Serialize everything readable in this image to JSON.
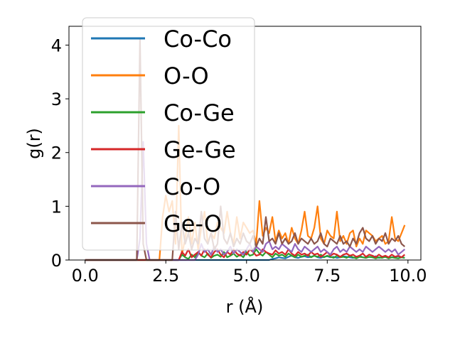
{
  "chart_data": {
    "type": "line",
    "xlabel": "r (Å)",
    "ylabel": "g(r)",
    "xlim": [
      -0.5,
      10.4
    ],
    "ylim": [
      0,
      4.35
    ],
    "xticks": [
      0.0,
      2.5,
      5.0,
      7.5,
      10.0
    ],
    "xtick_labels": [
      "0.0",
      "2.5",
      "5.0",
      "7.5",
      "10.0"
    ],
    "yticks": [
      0,
      1,
      2,
      3,
      4
    ],
    "ytick_labels": [
      "0",
      "1",
      "2",
      "3",
      "4"
    ],
    "grid": false,
    "legend_position": "upper-left",
    "x": [
      0.0,
      0.1,
      0.2,
      0.3,
      0.4,
      0.5,
      0.6,
      0.7,
      0.8,
      0.9,
      1.0,
      1.1,
      1.2,
      1.3,
      1.4,
      1.5,
      1.6,
      1.7,
      1.8,
      1.9,
      2.0,
      2.1,
      2.2,
      2.3,
      2.4,
      2.5,
      2.6,
      2.7,
      2.8,
      2.9,
      3.0,
      3.1,
      3.2,
      3.3,
      3.4,
      3.5,
      3.6,
      3.7,
      3.8,
      3.9,
      4.0,
      4.1,
      4.2,
      4.3,
      4.4,
      4.5,
      4.6,
      4.7,
      4.8,
      4.9,
      5.0,
      5.1,
      5.2,
      5.3,
      5.4,
      5.5,
      5.6,
      5.7,
      5.8,
      5.9,
      6.0,
      6.1,
      6.2,
      6.3,
      6.4,
      6.5,
      6.6,
      6.7,
      6.8,
      6.9,
      7.0,
      7.1,
      7.2,
      7.3,
      7.4,
      7.5,
      7.6,
      7.7,
      7.8,
      7.9,
      8.0,
      8.1,
      8.2,
      8.3,
      8.4,
      8.5,
      8.6,
      8.7,
      8.8,
      8.9,
      9.0,
      9.1,
      9.2,
      9.3,
      9.4,
      9.5,
      9.6,
      9.7,
      9.8,
      9.9
    ],
    "series": [
      {
        "name": "Co-Co",
        "color": "#1f77b4",
        "values": [
          0,
          0,
          0,
          0,
          0,
          0,
          0,
          0,
          0,
          0,
          0,
          0,
          0,
          0,
          0,
          0,
          0,
          0,
          0,
          0,
          0,
          0,
          0,
          0,
          0,
          0,
          0,
          0,
          0,
          0,
          0,
          0,
          0,
          0,
          0,
          0,
          0,
          0,
          0,
          0,
          0,
          0,
          0,
          0,
          0,
          0,
          0,
          0,
          0,
          0,
          0,
          0,
          0,
          0,
          0,
          0,
          0,
          0,
          0.02,
          0.03,
          0.05,
          0.04,
          0.03,
          0.06,
          0.08,
          0.05,
          0.04,
          0.06,
          0.07,
          0.05,
          0.06,
          0.08,
          0.05,
          0.04,
          0.06,
          0.07,
          0.05,
          0.06,
          0.04,
          0.05,
          0.07,
          0.06,
          0.05,
          0.04,
          0.06,
          0.08,
          0.05,
          0.04,
          0.06,
          0.05,
          0.07,
          0.04,
          0.05,
          0.06,
          0.04,
          0.05,
          0.06,
          0.07,
          0.05,
          0.04
        ]
      },
      {
        "name": "O-O",
        "color": "#ff7f0e",
        "values": [
          0,
          0,
          0,
          0,
          0,
          0,
          0,
          0,
          0,
          0,
          0,
          0,
          0,
          0,
          0,
          0,
          0,
          0,
          0,
          0,
          0,
          0,
          0,
          0,
          0.8,
          1.2,
          0.9,
          1.1,
          0.3,
          2.5,
          0.1,
          0.4,
          0.8,
          0.3,
          0.7,
          0.2,
          0.6,
          0.9,
          0.3,
          0.5,
          0.4,
          0.7,
          0.6,
          0.5,
          0.9,
          0.5,
          0.3,
          0.8,
          0.4,
          0.7,
          0.6,
          0.5,
          0.55,
          0.3,
          1.1,
          0.45,
          0.6,
          0.5,
          0.8,
          0.35,
          0.55,
          0.4,
          0.5,
          0.3,
          0.6,
          0.4,
          0.3,
          0.55,
          0.9,
          0.45,
          0.4,
          0.6,
          1.0,
          0.4,
          0.3,
          0.55,
          0.45,
          0.4,
          0.9,
          0.35,
          0.45,
          0.3,
          0.5,
          0.55,
          0.25,
          0.4,
          0.3,
          0.55,
          0.5,
          0.45,
          0.35,
          0.4,
          0.45,
          0.3,
          0.35,
          0.8,
          0.4,
          0.35,
          0.5,
          0.65
        ]
      },
      {
        "name": "Co-Ge",
        "color": "#2ca02c",
        "values": [
          0,
          0,
          0,
          0,
          0,
          0,
          0,
          0,
          0,
          0,
          0,
          0,
          0,
          0,
          0,
          0,
          0,
          0,
          0,
          0,
          0,
          0,
          0,
          0,
          0,
          0,
          0,
          0,
          0,
          0,
          0.1,
          0.05,
          0.02,
          0.1,
          0.05,
          0.15,
          0.08,
          0.05,
          0.12,
          0.04,
          0.08,
          0.1,
          0.06,
          0.15,
          0.05,
          0.08,
          0.12,
          0.06,
          0.1,
          0.05,
          0.15,
          0.08,
          0.1,
          0.2,
          0.12,
          0.08,
          0.15,
          0.1,
          0.05,
          0.12,
          0.08,
          0.1,
          0.06,
          0.12,
          0.08,
          0.05,
          0.1,
          0.06,
          0.08,
          0.1,
          0.05,
          0.08,
          0.06,
          0.1,
          0.05,
          0.08,
          0.06,
          0.04,
          0.08,
          0.05,
          0.06,
          0.04,
          0.08,
          0.05,
          0.03,
          0.06,
          0.05,
          0.04,
          0.06,
          0.05,
          0.03,
          0.05,
          0.04,
          0.06,
          0.03,
          0.05,
          0.04,
          0.03,
          0.05,
          0.04
        ]
      },
      {
        "name": "Ge-Ge",
        "color": "#d62728",
        "values": [
          0,
          0,
          0,
          0,
          0,
          0,
          0,
          0,
          0,
          0,
          0,
          0,
          0,
          0,
          0,
          0,
          0,
          0,
          0,
          0,
          0,
          0,
          0,
          0,
          0,
          0,
          0,
          0,
          0,
          0,
          0.15,
          0.08,
          0.2,
          0.05,
          0.1,
          0.15,
          0.08,
          0.2,
          0.1,
          0.05,
          0.15,
          0.2,
          0.1,
          0.05,
          0.15,
          0.1,
          0.2,
          0.12,
          0.08,
          0.15,
          0.1,
          0.2,
          0.15,
          0.08,
          0.1,
          0.2,
          0.15,
          0.12,
          0.1,
          0.18,
          0.12,
          0.15,
          0.1,
          0.2,
          0.12,
          0.08,
          0.15,
          0.1,
          0.12,
          0.08,
          0.15,
          0.1,
          0.12,
          0.06,
          0.1,
          0.15,
          0.08,
          0.12,
          0.1,
          0.06,
          0.1,
          0.12,
          0.08,
          0.1,
          0.06,
          0.08,
          0.12,
          0.06,
          0.1,
          0.08,
          0.05,
          0.1,
          0.06,
          0.08,
          0.05,
          0.1,
          0.06,
          0.08,
          0.05,
          0.1
        ]
      },
      {
        "name": "Co-O",
        "color": "#9467bd",
        "values": [
          0,
          0,
          0,
          0,
          0,
          0,
          0,
          0,
          0,
          0,
          0,
          0,
          0,
          0,
          0,
          0,
          0,
          0.4,
          2.2,
          0.3,
          0,
          0,
          0,
          0,
          0,
          0,
          0,
          0,
          0,
          0,
          0,
          0,
          0,
          0,
          0,
          0.1,
          0.3,
          0.15,
          0.2,
          0.1,
          0.25,
          0.15,
          0.2,
          0.1,
          0.15,
          0.25,
          0.12,
          0.2,
          0.15,
          0.1,
          0.2,
          0.3,
          0.15,
          0.25,
          0.2,
          0.15,
          0.3,
          0.35,
          0.2,
          0.25,
          0.2,
          0.3,
          0.25,
          0.2,
          0.15,
          0.3,
          0.2,
          0.15,
          0.25,
          0.2,
          0.15,
          0.2,
          0.25,
          0.15,
          0.2,
          0.15,
          0.1,
          0.2,
          0.25,
          0.15,
          0.2,
          0.15,
          0.25,
          0.2,
          0.15,
          0.2,
          0.15,
          0.25,
          0.2,
          0.15,
          0.2,
          0.25,
          0.2,
          0.15,
          0.2,
          0.15,
          0.2,
          0.1,
          0.15,
          0.2
        ]
      },
      {
        "name": "Ge-O",
        "color": "#8c564b",
        "values": [
          0,
          0,
          0,
          0,
          0,
          0,
          0,
          0,
          0,
          0,
          0,
          0,
          0,
          0,
          0,
          0,
          0,
          4.1,
          0.3,
          0,
          0,
          0,
          0,
          0,
          0,
          0,
          0,
          0,
          0.9,
          0.2,
          0.7,
          0.3,
          0.5,
          0.2,
          0.4,
          0.3,
          0.9,
          0.4,
          0.3,
          0.5,
          0.2,
          0.3,
          1.0,
          0.4,
          0.3,
          0.5,
          0.25,
          0.4,
          0.3,
          0.5,
          0.35,
          0.3,
          0.45,
          0.25,
          0.4,
          0.3,
          0.8,
          0.35,
          0.4,
          0.3,
          0.5,
          0.3,
          0.4,
          0.3,
          0.35,
          0.5,
          0.3,
          0.4,
          0.35,
          0.3,
          0.4,
          0.3,
          0.35,
          0.5,
          0.3,
          0.25,
          0.4,
          0.35,
          0.3,
          0.45,
          0.3,
          0.35,
          0.25,
          0.4,
          0.3,
          0.5,
          0.6,
          0.4,
          0.35,
          0.45,
          0.3,
          0.4,
          0.35,
          0.5,
          0.3,
          0.4,
          0.35,
          0.45,
          0.3,
          0.25
        ]
      }
    ]
  }
}
